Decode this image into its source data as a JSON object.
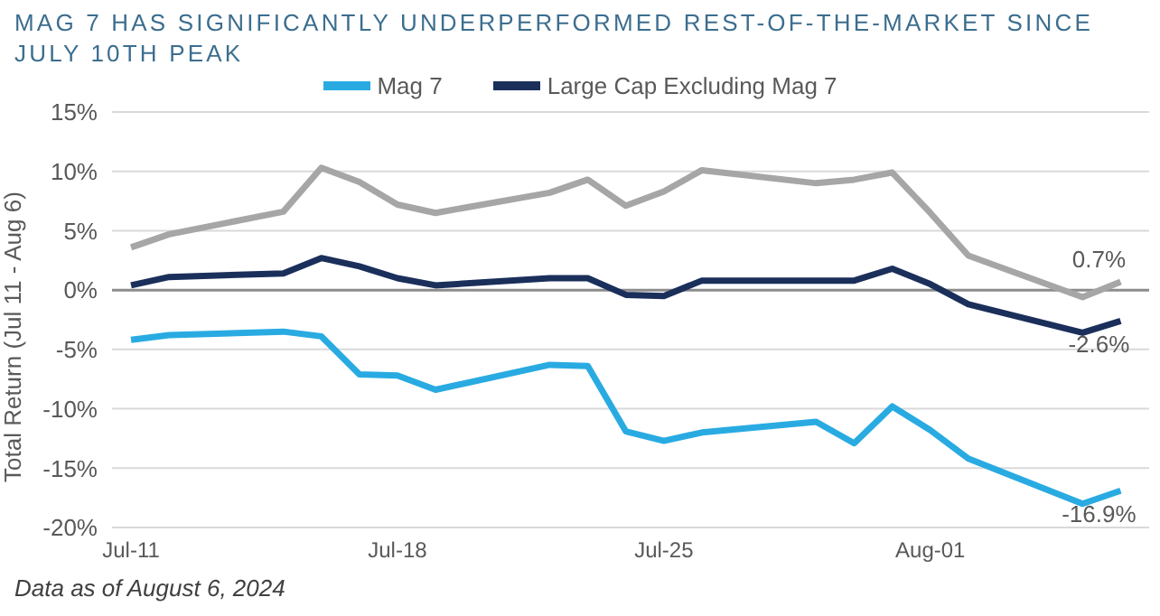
{
  "chart_data": {
    "type": "line",
    "title": "MAG 7 HAS SIGNIFICANTLY UNDERPERFORMED REST-OF-THE-MARKET SINCE JULY 10TH PEAK",
    "ylabel": "Total Return (Jul 11 - Aug 6)",
    "x": [
      "2024-07-11",
      "2024-07-12",
      "2024-07-15",
      "2024-07-16",
      "2024-07-17",
      "2024-07-18",
      "2024-07-19",
      "2024-07-22",
      "2024-07-23",
      "2024-07-24",
      "2024-07-25",
      "2024-07-26",
      "2024-07-29",
      "2024-07-30",
      "2024-07-31",
      "2024-08-01",
      "2024-08-02",
      "2024-08-05",
      "2024-08-06"
    ],
    "series": [
      {
        "name": "Mag 7",
        "color": "#29abe2",
        "values": [
          -4.2,
          -3.8,
          -3.5,
          -3.9,
          -7.1,
          -7.2,
          -8.4,
          -6.3,
          -6.4,
          -11.9,
          -12.7,
          -12.0,
          -11.1,
          -12.9,
          -9.8,
          -11.8,
          -14.2,
          -18.0,
          -16.9
        ]
      },
      {
        "name": "Large Cap Excluding Mag 7",
        "color": "#1b2f5b",
        "values": [
          0.4,
          1.1,
          1.4,
          2.7,
          2.0,
          1.0,
          0.4,
          1.0,
          1.0,
          -0.4,
          -0.5,
          0.8,
          0.8,
          0.8,
          1.8,
          0.5,
          -1.2,
          -3.6,
          -2.6
        ]
      },
      {
        "color": "#a6a6a6",
        "values": [
          3.6,
          4.7,
          6.6,
          10.3,
          9.1,
          7.2,
          6.5,
          8.2,
          9.3,
          7.1,
          8.3,
          10.1,
          9.0,
          9.3,
          9.9,
          6.5,
          2.9,
          -0.6,
          0.7
        ]
      }
    ],
    "xlim": [
      "2024-07-10T12:00",
      "2024-08-06T18:00"
    ],
    "xticks": [
      {
        "value": "2024-07-11",
        "label": "Jul-11"
      },
      {
        "value": "2024-07-18",
        "label": "Jul-18"
      },
      {
        "value": "2024-07-25",
        "label": "Jul-25"
      },
      {
        "value": "2024-08-01",
        "label": "Aug-01"
      }
    ],
    "ylim": [
      -20,
      15
    ],
    "yticks": [
      {
        "value": -20,
        "label": "-20%"
      },
      {
        "value": -15,
        "label": "-15%"
      },
      {
        "value": -10,
        "label": "-10%"
      },
      {
        "value": -5,
        "label": "-5%"
      },
      {
        "value": 0,
        "label": "0%"
      },
      {
        "value": 5,
        "label": "5%"
      },
      {
        "value": 10,
        "label": "10%"
      },
      {
        "value": 15,
        "label": "15%"
      }
    ],
    "grid": "y",
    "legend": "top",
    "marker": "none",
    "line_style": "solid",
    "annotations": [
      {
        "text": "0.7%",
        "x": "2024-08-06",
        "y": 0.7
      },
      {
        "text": "-2.6%",
        "x": "2024-08-06",
        "y": -2.6
      },
      {
        "text": "-16.9%",
        "x": "2024-08-06",
        "y": -16.9
      },
      "Data as of August 6, 2024"
    ]
  }
}
